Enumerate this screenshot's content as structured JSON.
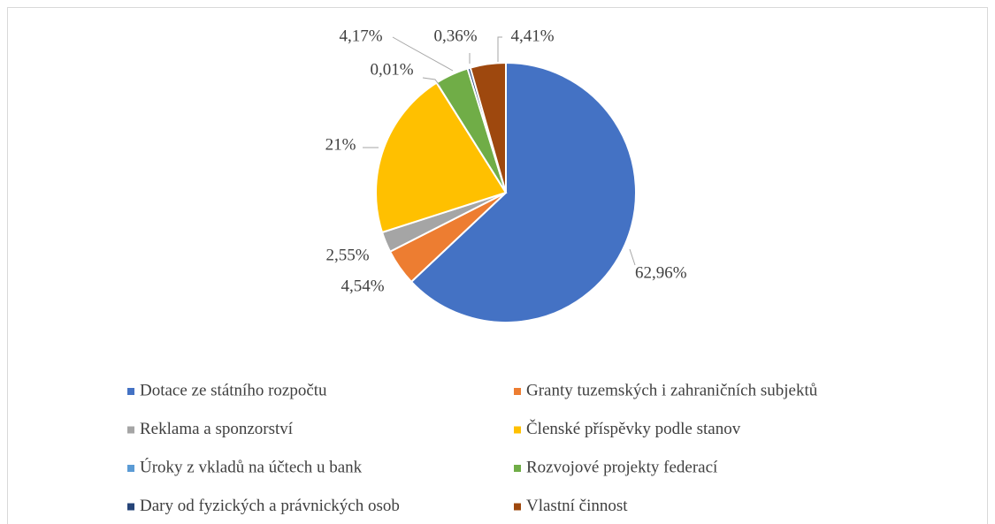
{
  "chart_data": {
    "type": "pie",
    "categories": [
      "Dotace ze státního rozpočtu",
      "Granty tuzemských i zahraničních subjektů",
      "Reklama a sponzorství",
      "Členské příspěvky podle stanov",
      "Úroky z vkladů na účtech u bank",
      "Rozvojové projekty federací",
      "Dary od fyzických a právnických osob",
      "Vlastní činnost"
    ],
    "values": [
      62.96,
      4.54,
      2.55,
      21,
      0.01,
      4.17,
      0.36,
      4.41
    ],
    "value_labels": [
      "62,96%",
      "4,54%",
      "2,55%",
      "21%",
      "0,01%",
      "4,17%",
      "0,36%",
      "4,41%"
    ],
    "colors": [
      "#4472c4",
      "#ed7d31",
      "#a5a5a5",
      "#ffc000",
      "#5b9bd5",
      "#70ad47",
      "#264478",
      "#9e480e"
    ],
    "legend": "bottom"
  }
}
